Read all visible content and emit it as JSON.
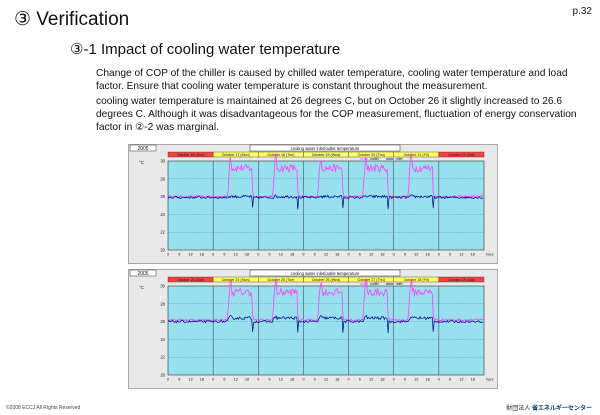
{
  "page": {
    "number": "p.32",
    "title": "③ Verification",
    "subtitle": "③-1 Impact of cooling water temperature",
    "paragraph1": "Change of COP of the chiller is caused by chilled water temperature, cooling water temperature and load factor. Ensure that cooling water temperature is constant throughout the measurement.",
    "paragraph2": "cooling water temperature is maintained at 26 degrees C, but on October 26 it slightly increased to 26.6 degrees C. Although it was disadvantageous for the COP measurement, fluctuation of energy conservation factor in ②-2 was marginal.",
    "footer_left": "©2008 ECCJ All Rights Reserved",
    "footer_right_prefix": "財団法人",
    "footer_right_logo": "省エネルギーセンター"
  },
  "colors": {
    "plot_bg": "#98e0ee",
    "outer_bg": "#e9e9e9",
    "pink": "#ff40ff",
    "navy": "#000080",
    "yellow": "#ffff66",
    "red": "#ff4040",
    "grid": "#2a6a8a"
  },
  "chart_data": [
    {
      "type": "line",
      "year": "2005",
      "title": "cooling water inlet/outlet temperature",
      "unit": "°C",
      "hours_axis_unit": "hour",
      "yticks": [
        "30",
        "28",
        "26",
        "24",
        "22",
        "20"
      ],
      "ylim": [
        20,
        30
      ],
      "xticks": [
        "0",
        "6",
        "12",
        "18",
        "0",
        "6",
        "12",
        "18",
        "0",
        "6",
        "12",
        "18",
        "0",
        "6",
        "12",
        "18",
        "0",
        "6",
        "12",
        "18",
        "0",
        "6",
        "12",
        "18",
        "0",
        "6",
        "12",
        "18"
      ],
      "days": [
        {
          "label": "October 16 (Sun)",
          "color": "red"
        },
        {
          "label": "October 17 (Mon)",
          "color": "yellow"
        },
        {
          "label": "October 18 (Tue)",
          "color": "yellow"
        },
        {
          "label": "October 19 (Wed)",
          "color": "yellow"
        },
        {
          "label": "October 20 (Thu)",
          "color": "yellow"
        },
        {
          "label": "October 21 (Fri)",
          "color": "yellow"
        },
        {
          "label": "October 22 (Sat)",
          "color": "red"
        }
      ],
      "legend": [
        "outlet",
        "inlet"
      ],
      "series": [
        {
          "name": "outlet",
          "color": "pink",
          "operating": 29.2,
          "idle": 26.0
        },
        {
          "name": "inlet",
          "color": "navy",
          "operating": 26.0,
          "idle": 25.9
        }
      ]
    },
    {
      "type": "line",
      "year": "2005",
      "title": "cooling water inlet/outlet temperature",
      "unit": "°C",
      "hours_axis_unit": "hour",
      "yticks": [
        "30",
        "28",
        "26",
        "24",
        "22",
        "20"
      ],
      "ylim": [
        20,
        30
      ],
      "xticks": [
        "0",
        "6",
        "12",
        "18",
        "0",
        "6",
        "12",
        "18",
        "0",
        "6",
        "12",
        "18",
        "0",
        "6",
        "12",
        "18",
        "0",
        "6",
        "12",
        "18",
        "0",
        "6",
        "12",
        "18",
        "0",
        "6",
        "12",
        "18"
      ],
      "days": [
        {
          "label": "October 23 (Sun)",
          "color": "red"
        },
        {
          "label": "October 24 (Mon)",
          "color": "yellow"
        },
        {
          "label": "October 25 (Tue)",
          "color": "yellow"
        },
        {
          "label": "October 26 (Wed)",
          "color": "yellow"
        },
        {
          "label": "October 27 (Thu)",
          "color": "yellow"
        },
        {
          "label": "October 28 (Fri)",
          "color": "yellow"
        },
        {
          "label": "October 29 (Sat)",
          "color": "red"
        }
      ],
      "legend": [
        "outlet",
        "inlet"
      ],
      "series": [
        {
          "name": "outlet",
          "color": "pink",
          "operating": 29.3,
          "idle": 26.2
        },
        {
          "name": "inlet",
          "color": "navy",
          "operating": 26.4,
          "idle": 26.0
        }
      ]
    }
  ]
}
